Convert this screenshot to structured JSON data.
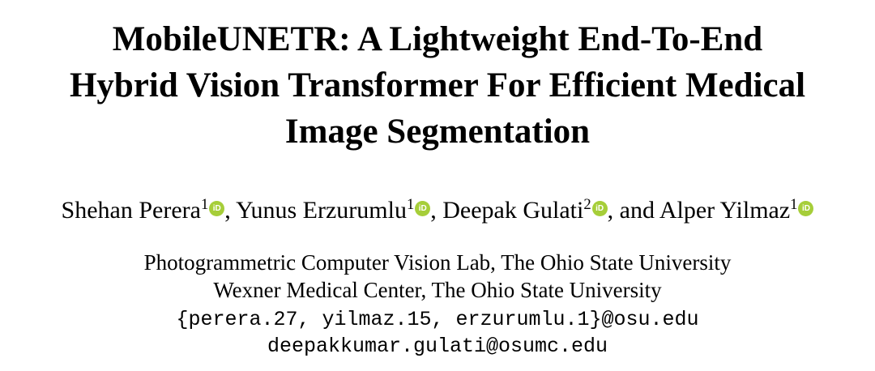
{
  "page": {
    "background_color": "#ffffff",
    "text_color": "#000000"
  },
  "title": {
    "lines": [
      "MobileUNETR: A Lightweight End-To-End",
      "Hybrid Vision Transformer For Efficient Medical",
      "Image Segmentation"
    ]
  },
  "authors": {
    "orcid_color": "#A6CE39",
    "orcid_label": "iD",
    "list": [
      {
        "prefix": "",
        "name": "Shehan Perera",
        "sup": "1",
        "suffix": ", "
      },
      {
        "prefix": "",
        "name": "Yunus Erzurumlu",
        "sup": "1",
        "suffix": ", "
      },
      {
        "prefix": "",
        "name": "Deepak Gulati",
        "sup": "2",
        "suffix": ", "
      },
      {
        "prefix": "and ",
        "name": "Alper Yilmaz",
        "sup": "1",
        "suffix": ""
      }
    ]
  },
  "affiliations": {
    "lines": [
      "Photogrammetric Computer Vision Lab, The Ohio State University",
      "Wexner Medical Center, The Ohio State University"
    ]
  },
  "emails": {
    "lines": [
      "{perera.27, yilmaz.15, erzurumlu.1}@osu.edu",
      "deepakkumar.gulati@osumc.edu"
    ]
  }
}
